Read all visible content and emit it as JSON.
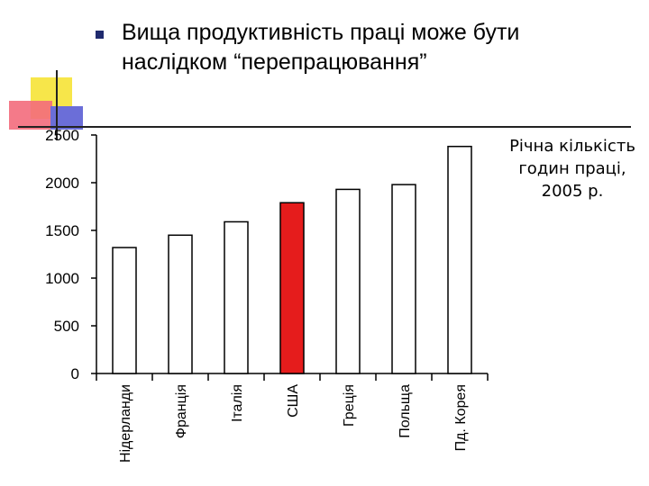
{
  "slide": {
    "title": "Вища продуктивність праці може бути наслідком “перепрацювання”",
    "side_note": "Річна кількість годин праці, 2005 р."
  },
  "colors": {
    "bar_default": "#ffffff",
    "bar_highlight": "#e51c1c",
    "bar_stroke": "#000000",
    "bullet": "#1f2a6e"
  },
  "icons": {
    "bullet": "square-bullet-icon",
    "ornament": "corner-squares-decoration"
  },
  "chart_data": {
    "type": "bar",
    "categories": [
      "Нідерланди",
      "Франція",
      "Італія",
      "США",
      "Греція",
      "Польща",
      "Пд. Корея"
    ],
    "values": [
      1320,
      1450,
      1590,
      1790,
      1930,
      1980,
      2380
    ],
    "highlight_category": "США",
    "yticks": [
      0,
      500,
      1000,
      1500,
      2000,
      2500
    ],
    "ylim": [
      0,
      2500
    ],
    "title": "",
    "xlabel": "",
    "ylabel": "",
    "grid": false,
    "legend": "none"
  }
}
